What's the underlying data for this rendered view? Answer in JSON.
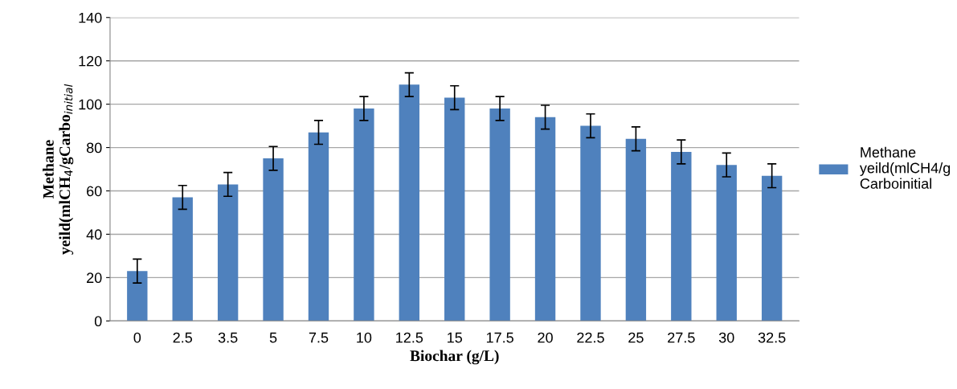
{
  "chart_data": {
    "type": "bar",
    "xlabel": "Biochar (g/L)",
    "ylabel": "Methane\nyeild(mlCH$_{4}$/gCarbo$_{initial}$",
    "categories": [
      "0",
      "2.5",
      "3.5",
      "5",
      "7.5",
      "10",
      "12.5",
      "15",
      "17.5",
      "20",
      "22.5",
      "25",
      "27.5",
      "30",
      "32.5"
    ],
    "series": [
      {
        "name": "Methane\nyeild(mlCH4/g\nCarboinitial",
        "color": "#4f81bd",
        "values": [
          23,
          57,
          63,
          75,
          87,
          98,
          109,
          103,
          98,
          94,
          90,
          84,
          78,
          72,
          67
        ],
        "errors": [
          5.5,
          5.5,
          5.5,
          5.5,
          5.5,
          5.5,
          5.5,
          5.5,
          5.5,
          5.5,
          5.5,
          5.5,
          5.5,
          5.5,
          5.5
        ]
      }
    ],
    "ylim": [
      0,
      140
    ],
    "yticks": [
      0,
      20,
      40,
      60,
      80,
      100,
      120,
      140
    ],
    "grid": "y",
    "legend": "right"
  }
}
